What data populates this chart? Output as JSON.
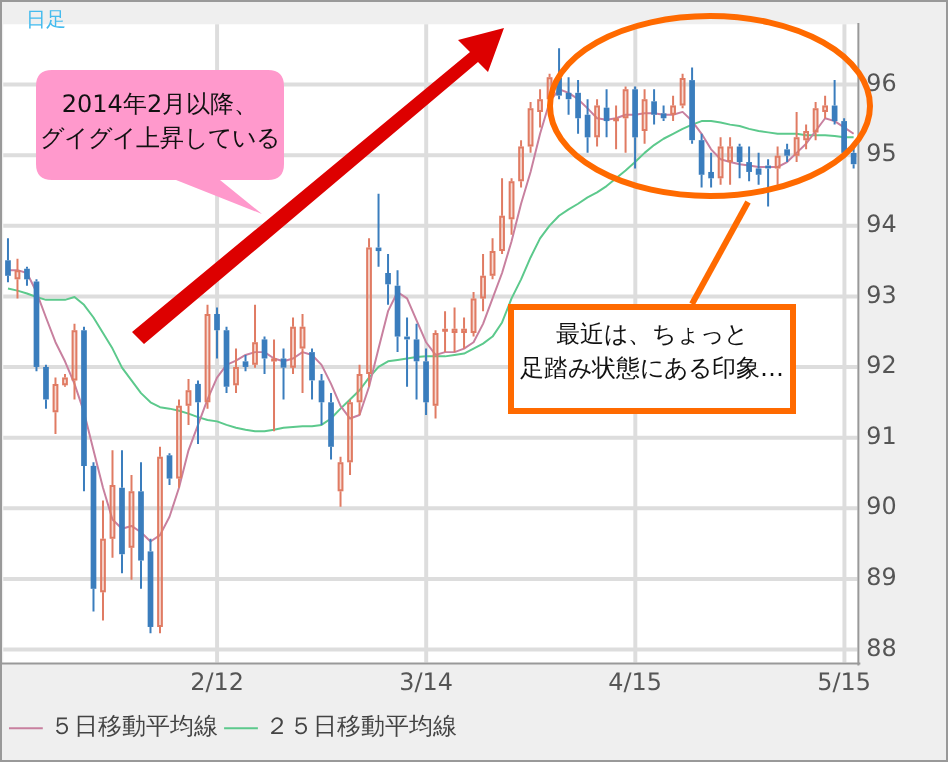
{
  "chart_data": {
    "type": "candlestick",
    "categories": [
      null,
      null,
      null,
      null,
      null,
      null,
      null,
      null,
      null,
      null,
      null,
      null,
      null,
      null,
      null,
      null,
      null,
      null,
      null,
      null,
      null,
      null,
      "2/12",
      null,
      null,
      null,
      null,
      null,
      null,
      null,
      null,
      null,
      null,
      null,
      null,
      null,
      null,
      null,
      null,
      null,
      null,
      null,
      null,
      null,
      "3/14",
      null,
      null,
      null,
      null,
      null,
      null,
      null,
      null,
      null,
      null,
      null,
      null,
      null,
      null,
      null,
      null,
      null,
      null,
      null,
      null,
      null,
      "4/15",
      null,
      null,
      null,
      null,
      null,
      null,
      null,
      null,
      null,
      null,
      null,
      null,
      null,
      null,
      null,
      null,
      null,
      null,
      null,
      null,
      null,
      "5/15",
      null
    ],
    "ohlc": [
      [
        93.51,
        93.82,
        93.2,
        93.29
      ],
      [
        93.24,
        93.53,
        92.97,
        93.37
      ],
      [
        93.39,
        93.42,
        93.15,
        93.24
      ],
      [
        93.21,
        93.24,
        91.94,
        92.0
      ],
      [
        92.0,
        92.03,
        91.41,
        91.54
      ],
      [
        91.36,
        91.85,
        91.05,
        91.76
      ],
      [
        91.74,
        91.9,
        91.72,
        91.85
      ],
      [
        91.81,
        92.61,
        91.54,
        92.52
      ],
      [
        92.52,
        92.57,
        90.24,
        90.6
      ],
      [
        90.6,
        90.65,
        88.54,
        88.86
      ],
      [
        88.81,
        90.11,
        88.41,
        89.57
      ],
      [
        89.57,
        90.82,
        89.3,
        90.33
      ],
      [
        90.29,
        90.82,
        89.08,
        89.35
      ],
      [
        89.44,
        90.47,
        88.99,
        90.24
      ],
      [
        90.24,
        90.65,
        88.86,
        89.26
      ],
      [
        89.39,
        89.57,
        88.23,
        88.32
      ],
      [
        88.32,
        90.87,
        88.23,
        90.73
      ],
      [
        90.75,
        90.78,
        90.33,
        90.42
      ],
      [
        90.42,
        91.54,
        90.29,
        91.45
      ],
      [
        91.45,
        91.83,
        91.18,
        91.67
      ],
      [
        91.76,
        91.81,
        90.91,
        91.5
      ],
      [
        91.5,
        92.88,
        91.41,
        92.75
      ],
      [
        92.75,
        92.84,
        92.12,
        92.52
      ],
      [
        92.52,
        92.57,
        91.63,
        91.72
      ],
      [
        91.74,
        92.26,
        91.63,
        92.0
      ],
      [
        92.08,
        92.17,
        91.94,
        92.0
      ],
      [
        92.03,
        92.88,
        91.99,
        92.35
      ],
      [
        92.39,
        92.43,
        91.9,
        92.12
      ],
      [
        92.08,
        92.39,
        91.09,
        92.12
      ],
      [
        92.12,
        92.26,
        91.54,
        91.99
      ],
      [
        91.99,
        92.7,
        91.9,
        92.57
      ],
      [
        92.26,
        92.75,
        91.63,
        92.57
      ],
      [
        92.21,
        92.26,
        91.54,
        91.81
      ],
      [
        91.81,
        91.9,
        91.18,
        91.5
      ],
      [
        91.5,
        91.63,
        90.69,
        90.87
      ],
      [
        90.24,
        90.73,
        90.02,
        90.65
      ],
      [
        90.65,
        91.54,
        90.47,
        91.5
      ],
      [
        91.5,
        92.03,
        91.32,
        91.9
      ],
      [
        91.9,
        93.82,
        91.72,
        93.69
      ],
      [
        93.69,
        94.45,
        93.42,
        93.64
      ],
      [
        93.33,
        93.6,
        92.88,
        93.17
      ],
      [
        93.15,
        93.37,
        92.21,
        92.43
      ],
      [
        92.43,
        92.7,
        91.72,
        92.39
      ],
      [
        92.39,
        92.61,
        91.54,
        92.08
      ],
      [
        92.08,
        92.26,
        91.32,
        91.5
      ],
      [
        91.45,
        92.52,
        91.27,
        92.48
      ],
      [
        92.51,
        92.79,
        92.21,
        92.54
      ],
      [
        92.48,
        92.84,
        92.21,
        92.54
      ],
      [
        92.48,
        92.7,
        92.26,
        92.54
      ],
      [
        92.48,
        93.06,
        92.43,
        92.97
      ],
      [
        92.97,
        93.6,
        92.79,
        93.29
      ],
      [
        93.29,
        93.82,
        93.24,
        93.64
      ],
      [
        93.64,
        94.67,
        93.6,
        94.14
      ],
      [
        94.09,
        94.67,
        93.87,
        94.63
      ],
      [
        94.63,
        95.21,
        94.54,
        95.12
      ],
      [
        95.12,
        95.75,
        95.03,
        95.66
      ],
      [
        95.61,
        95.93,
        95.39,
        95.79
      ],
      [
        95.79,
        96.15,
        95.7,
        96.1
      ],
      [
        96.09,
        96.51,
        95.79,
        95.84
      ],
      [
        95.88,
        96.1,
        95.57,
        95.79
      ],
      [
        95.88,
        96.06,
        95.3,
        95.52
      ],
      [
        95.57,
        95.79,
        95.03,
        95.25
      ],
      [
        95.25,
        95.79,
        95.12,
        95.7
      ],
      [
        95.67,
        95.93,
        95.25,
        95.48
      ],
      [
        95.48,
        95.7,
        95.08,
        95.52
      ],
      [
        95.52,
        95.97,
        95.03,
        95.93
      ],
      [
        95.93,
        95.97,
        94.81,
        95.25
      ],
      [
        95.34,
        95.93,
        95.16,
        95.79
      ],
      [
        95.76,
        95.93,
        95.43,
        95.57
      ],
      [
        95.59,
        95.7,
        95.48,
        95.52
      ],
      [
        95.57,
        95.84,
        95.48,
        95.7
      ],
      [
        95.7,
        96.15,
        95.66,
        96.09
      ],
      [
        96.06,
        96.24,
        95.16,
        95.21
      ],
      [
        95.21,
        95.3,
        94.54,
        94.72
      ],
      [
        94.76,
        95.03,
        94.54,
        94.67
      ],
      [
        94.67,
        95.25,
        94.58,
        95.12
      ],
      [
        94.9,
        95.25,
        94.58,
        95.12
      ],
      [
        95.12,
        95.16,
        94.67,
        94.9
      ],
      [
        94.9,
        95.12,
        94.63,
        94.76
      ],
      [
        94.81,
        95.03,
        94.58,
        94.72
      ],
      [
        94.85,
        94.94,
        94.27,
        94.81
      ],
      [
        94.81,
        95.12,
        94.58,
        94.99
      ],
      [
        95.08,
        95.16,
        94.9,
        94.99
      ],
      [
        94.99,
        95.61,
        94.9,
        95.25
      ],
      [
        95.21,
        95.43,
        95.08,
        95.34
      ],
      [
        95.32,
        95.75,
        95.21,
        95.66
      ],
      [
        95.61,
        95.84,
        95.52,
        95.7
      ],
      [
        95.7,
        96.06,
        95.43,
        95.48
      ],
      [
        95.48,
        95.52,
        94.99,
        95.03
      ],
      [
        95.03,
        95.12,
        94.81,
        94.87
      ]
    ],
    "colors": [
      "#3a7dbd",
      "#e07b63",
      "#3a7dbd",
      "#3a7dbd",
      "#3a7dbd",
      "#e07b63",
      "#e07b63",
      "#e07b63",
      "#3a7dbd",
      "#3a7dbd",
      "#e07b63",
      "#e07b63",
      "#3a7dbd",
      "#e07b63",
      "#3a7dbd",
      "#3a7dbd",
      "#e07b63",
      "#3a7dbd",
      "#e07b63",
      "#e07b63",
      "#3a7dbd",
      "#e07b63",
      "#3a7dbd",
      "#3a7dbd",
      "#e07b63",
      "#3a7dbd",
      "#e07b63",
      "#3a7dbd",
      "#e07b63",
      "#3a7dbd",
      "#e07b63",
      "#e07b63",
      "#3a7dbd",
      "#3a7dbd",
      "#3a7dbd",
      "#e07b63",
      "#e07b63",
      "#e07b63",
      "#e07b63",
      "#3a7dbd",
      "#3a7dbd",
      "#3a7dbd",
      "#3a7dbd",
      "#3a7dbd",
      "#3a7dbd",
      "#e07b63",
      "#e07b63",
      "#e07b63",
      "#e07b63",
      "#e07b63",
      "#e07b63",
      "#e07b63",
      "#e07b63",
      "#e07b63",
      "#e07b63",
      "#e07b63",
      "#e07b63",
      "#e07b63",
      "#3a7dbd",
      "#3a7dbd",
      "#3a7dbd",
      "#3a7dbd",
      "#e07b63",
      "#3a7dbd",
      "#e07b63",
      "#e07b63",
      "#3a7dbd",
      "#e07b63",
      "#3a7dbd",
      "#3a7dbd",
      "#e07b63",
      "#e07b63",
      "#3a7dbd",
      "#3a7dbd",
      "#3a7dbd",
      "#e07b63",
      "#e07b63",
      "#3a7dbd",
      "#3a7dbd",
      "#3a7dbd",
      "#3a7dbd",
      "#e07b63",
      "#3a7dbd",
      "#e07b63",
      "#e07b63",
      "#e07b63",
      "#e07b63",
      "#3a7dbd",
      "#3a7dbd",
      "#3a7dbd"
    ],
    "series": [
      {
        "type": "line",
        "name": "５日移動平均線",
        "color": "#c8809f",
        "values": [
          93.37,
          93.37,
          93.33,
          93.06,
          92.7,
          92.35,
          92.08,
          91.76,
          91.36,
          90.82,
          90.29,
          89.84,
          89.71,
          89.75,
          89.66,
          89.53,
          89.62,
          89.88,
          90.29,
          90.82,
          91.18,
          91.54,
          91.85,
          92.03,
          92.09,
          92.17,
          92.21,
          92.21,
          92.12,
          92.08,
          92.12,
          92.21,
          92.17,
          92.03,
          91.76,
          91.45,
          91.27,
          91.32,
          91.72,
          92.26,
          92.79,
          93.06,
          92.97,
          92.66,
          92.35,
          92.17,
          92.21,
          92.21,
          92.26,
          92.35,
          92.61,
          92.97,
          93.33,
          93.78,
          94.31,
          94.76,
          95.3,
          95.75,
          95.93,
          95.88,
          95.79,
          95.66,
          95.52,
          95.5,
          95.52,
          95.57,
          95.57,
          95.59,
          95.59,
          95.57,
          95.57,
          95.61,
          95.48,
          95.3,
          95.08,
          94.94,
          94.9,
          94.87,
          94.85,
          94.83,
          94.83,
          94.83,
          94.9,
          95.03,
          95.16,
          95.34,
          95.52,
          95.48,
          95.39,
          95.3
        ]
      },
      {
        "type": "line",
        "name": "２５日移動平均線",
        "color": "#5cc98c",
        "values": [
          93.11,
          93.08,
          93.04,
          92.99,
          92.95,
          92.95,
          92.95,
          92.99,
          92.88,
          92.7,
          92.48,
          92.26,
          91.99,
          91.81,
          91.63,
          91.5,
          91.43,
          91.41,
          91.38,
          91.34,
          91.29,
          91.25,
          91.23,
          91.18,
          91.14,
          91.11,
          91.09,
          91.09,
          91.11,
          91.14,
          91.15,
          91.16,
          91.16,
          91.18,
          91.27,
          91.41,
          91.54,
          91.67,
          91.85,
          92.0,
          92.08,
          92.1,
          92.12,
          92.14,
          92.15,
          92.15,
          92.15,
          92.17,
          92.19,
          92.26,
          92.33,
          92.43,
          92.63,
          92.97,
          93.24,
          93.55,
          93.82,
          94.0,
          94.14,
          94.23,
          94.31,
          94.4,
          94.47,
          94.56,
          94.67,
          94.78,
          94.9,
          95.03,
          95.14,
          95.23,
          95.3,
          95.37,
          95.43,
          95.48,
          95.48,
          95.46,
          95.43,
          95.41,
          95.37,
          95.34,
          95.32,
          95.3,
          95.3,
          95.3,
          95.28,
          95.28,
          95.28,
          95.27,
          95.25,
          95.25
        ]
      }
    ],
    "ylim": [
      87.8,
      96.85
    ],
    "yticks": [
      88,
      89,
      90,
      91,
      92,
      93,
      94,
      95,
      96
    ],
    "grid": true,
    "legend": "bottom",
    "marker": "none",
    "annotations": [
      "日足",
      "2014年2月以降、",
      "グイグイ上昇している",
      "最近は、ちょっと",
      "足踏み状態にある印象…"
    ]
  }
}
